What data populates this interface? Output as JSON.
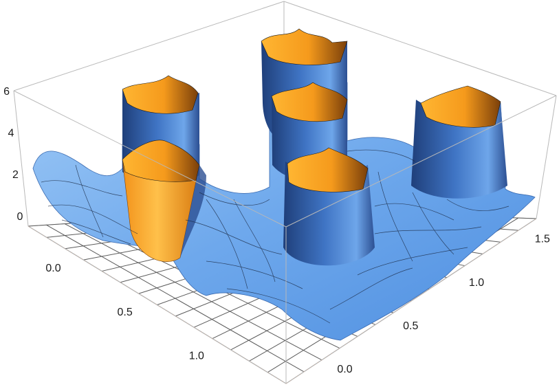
{
  "chart_data": {
    "type": "surface",
    "title": "",
    "xlabel": "",
    "ylabel": "",
    "zlabel": "",
    "xlim": [
      -0.3,
      1.5
    ],
    "ylim": [
      -0.3,
      1.6
    ],
    "zlim": [
      -0.5,
      6
    ],
    "z_ticks": [
      {
        "value": 0,
        "label": "0"
      },
      {
        "value": 2,
        "label": "2"
      },
      {
        "value": 4,
        "label": "4"
      },
      {
        "value": 6,
        "label": "6"
      }
    ],
    "x_ticks": [
      {
        "value": 0.0,
        "label": "0.0"
      },
      {
        "value": 0.5,
        "label": "0.5"
      },
      {
        "value": 1.0,
        "label": "1.0"
      }
    ],
    "y_ticks": [
      {
        "value": 0.0,
        "label": "0.0"
      },
      {
        "value": 0.5,
        "label": "0.5"
      },
      {
        "value": 1.0,
        "label": "1.0"
      },
      {
        "value": 1.5,
        "label": "1.5"
      }
    ],
    "peaks": [
      {
        "x": 0.0,
        "y": 0.5
      },
      {
        "x": 0.0,
        "y": 1.5
      },
      {
        "x": 0.5,
        "y": 0.5
      },
      {
        "x": 0.5,
        "y": 1.5
      },
      {
        "x": 1.0,
        "y": 0.5
      },
      {
        "x": 1.0,
        "y": 1.5
      }
    ],
    "clip_height": 6,
    "mesh": true,
    "colors": {
      "surface_top": "#8ec0f5",
      "surface_mid": "#4a86d4",
      "surface_dark": "#1f3f7a",
      "cap_light": "#ffb02a",
      "cap_dark": "#c96a0c",
      "box": "#b8b8b8",
      "floor_grid": "#5a5a5a",
      "floor_dashed": "#f0a070"
    }
  }
}
